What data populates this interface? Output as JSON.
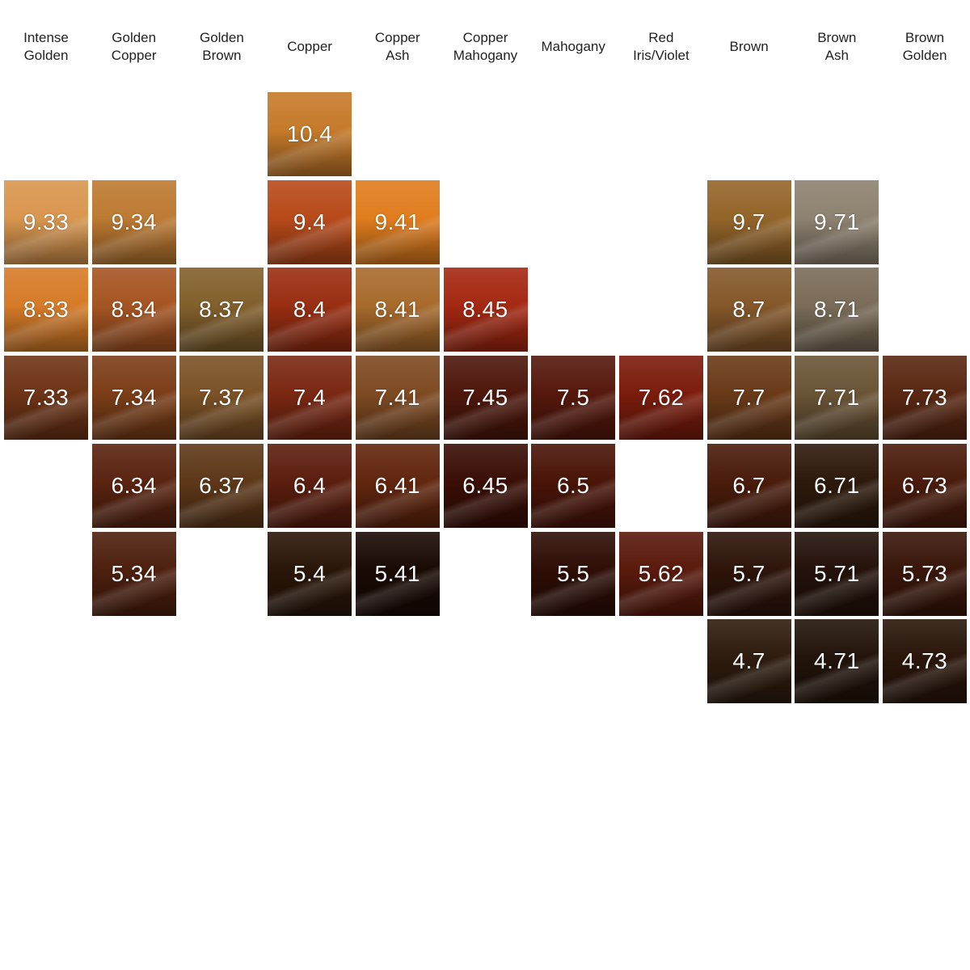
{
  "columns": [
    {
      "label": "Intense\nGolden"
    },
    {
      "label": "Golden\nCopper"
    },
    {
      "label": "Golden\nBrown"
    },
    {
      "label": "Copper"
    },
    {
      "label": "Copper\nAsh"
    },
    {
      "label": "Copper\nMahogany"
    },
    {
      "label": "Mahogany"
    },
    {
      "label": "Red\nIris/Violet"
    },
    {
      "label": "Brown"
    },
    {
      "label": "Brown\nAsh"
    },
    {
      "label": "Brown\nGolden"
    }
  ],
  "swatches": [
    {
      "code": "10.4",
      "column": 3,
      "level": 10,
      "color": "#c67a2a"
    },
    {
      "code": "9.33",
      "column": 0,
      "level": 9,
      "color": "#d9964f"
    },
    {
      "code": "9.34",
      "column": 1,
      "level": 9,
      "color": "#bd7a32"
    },
    {
      "code": "9.4",
      "column": 3,
      "level": 9,
      "color": "#b84a1a"
    },
    {
      "code": "9.41",
      "column": 4,
      "level": 9,
      "color": "#e07d1e"
    },
    {
      "code": "9.7",
      "column": 8,
      "level": 9,
      "color": "#94652a"
    },
    {
      "code": "9.71",
      "column": 9,
      "level": 9,
      "color": "#8e8270"
    },
    {
      "code": "8.33",
      "column": 0,
      "level": 8,
      "color": "#d67b28"
    },
    {
      "code": "8.34",
      "column": 1,
      "level": 8,
      "color": "#a65522"
    },
    {
      "code": "8.37",
      "column": 2,
      "level": 8,
      "color": "#82602c"
    },
    {
      "code": "8.4",
      "column": 3,
      "level": 8,
      "color": "#992e12"
    },
    {
      "code": "8.41",
      "column": 4,
      "level": 8,
      "color": "#a86a2c"
    },
    {
      "code": "8.45",
      "column": 5,
      "level": 8,
      "color": "#a52812"
    },
    {
      "code": "8.7",
      "column": 8,
      "level": 8,
      "color": "#85582a"
    },
    {
      "code": "8.71",
      "column": 9,
      "level": 8,
      "color": "#7a6c58"
    },
    {
      "code": "7.33",
      "column": 0,
      "level": 7,
      "color": "#6e3416"
    },
    {
      "code": "7.34",
      "column": 1,
      "level": 7,
      "color": "#7c3e18"
    },
    {
      "code": "7.37",
      "column": 2,
      "level": 7,
      "color": "#7c5226"
    },
    {
      "code": "7.4",
      "column": 3,
      "level": 7,
      "color": "#7a2812"
    },
    {
      "code": "7.41",
      "column": 4,
      "level": 7,
      "color": "#7e4a22"
    },
    {
      "code": "7.45",
      "column": 5,
      "level": 7,
      "color": "#4e170c"
    },
    {
      "code": "7.5",
      "column": 6,
      "level": 7,
      "color": "#56180c"
    },
    {
      "code": "7.62",
      "column": 7,
      "level": 7,
      "color": "#7c1c0c"
    },
    {
      "code": "7.7",
      "column": 8,
      "level": 7,
      "color": "#6a3a18"
    },
    {
      "code": "7.71",
      "column": 9,
      "level": 7,
      "color": "#6a5436"
    },
    {
      "code": "7.73",
      "column": 10,
      "level": 7,
      "color": "#5a2812"
    },
    {
      "code": "6.34",
      "column": 1,
      "level": 6,
      "color": "#5a2410"
    },
    {
      "code": "6.37",
      "column": 2,
      "level": 6,
      "color": "#5e3818"
    },
    {
      "code": "6.4",
      "column": 3,
      "level": 6,
      "color": "#5c1e0e"
    },
    {
      "code": "6.41",
      "column": 4,
      "level": 6,
      "color": "#62260e"
    },
    {
      "code": "6.45",
      "column": 5,
      "level": 6,
      "color": "#3a0e06"
    },
    {
      "code": "6.5",
      "column": 6,
      "level": 6,
      "color": "#4a1408"
    },
    {
      "code": "6.7",
      "column": 8,
      "level": 6,
      "color": "#4a1c0c"
    },
    {
      "code": "6.71",
      "column": 9,
      "level": 6,
      "color": "#2e1a0c"
    },
    {
      "code": "6.73",
      "column": 10,
      "level": 6,
      "color": "#4a1c0c"
    },
    {
      "code": "5.34",
      "column": 1,
      "level": 5,
      "color": "#4e200e"
    },
    {
      "code": "5.4",
      "column": 3,
      "level": 5,
      "color": "#2a1608"
    },
    {
      "code": "5.41",
      "column": 4,
      "level": 5,
      "color": "#1a0a04"
    },
    {
      "code": "5.5",
      "column": 6,
      "level": 5,
      "color": "#2e0e06"
    },
    {
      "code": "5.62",
      "column": 7,
      "level": 5,
      "color": "#5a1a0c"
    },
    {
      "code": "5.7",
      "column": 8,
      "level": 5,
      "color": "#2e140a"
    },
    {
      "code": "5.71",
      "column": 9,
      "level": 5,
      "color": "#24120a"
    },
    {
      "code": "5.73",
      "column": 10,
      "level": 5,
      "color": "#3a160a"
    },
    {
      "code": "4.7",
      "column": 8,
      "level": 4,
      "color": "#2e1c0e"
    },
    {
      "code": "4.71",
      "column": 9,
      "level": 4,
      "color": "#22140a"
    },
    {
      "code": "4.73",
      "column": 10,
      "level": 4,
      "color": "#2a160a"
    }
  ]
}
